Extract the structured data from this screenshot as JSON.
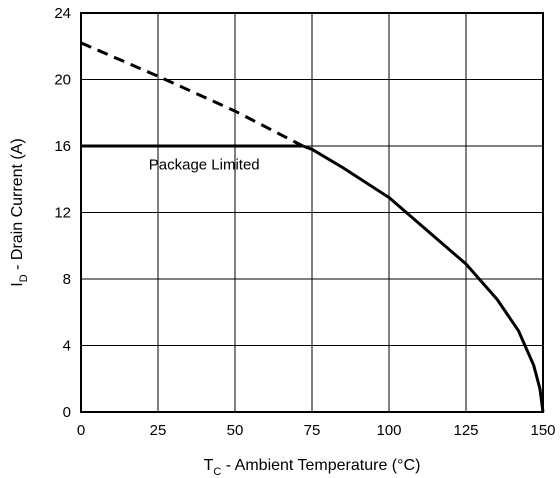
{
  "chart_data": {
    "type": "line",
    "title": "",
    "xlabel": {
      "main": "T",
      "sub": "C",
      "rest": " - Ambient Temperature (°C)"
    },
    "ylabel": {
      "main": "I",
      "sub": "D",
      "rest": " - Drain Current (A)"
    },
    "xlim": [
      0,
      150
    ],
    "ylim": [
      0,
      24
    ],
    "xticks": [
      "0",
      "25",
      "50",
      "75",
      "100",
      "125",
      "150"
    ],
    "yticks": [
      "0",
      "4",
      "8",
      "12",
      "16",
      "20",
      "24"
    ],
    "grid": true,
    "series": [
      {
        "style": "dashed",
        "x": [
          0,
          25,
          50,
          72
        ],
        "y": [
          22.2,
          20.2,
          18.1,
          16.0
        ]
      },
      {
        "style": "solid",
        "x": [
          0,
          72,
          75,
          85,
          100,
          110,
          125,
          135,
          142,
          147,
          149,
          150
        ],
        "y": [
          16.0,
          16.0,
          15.8,
          14.7,
          12.9,
          11.3,
          8.9,
          6.8,
          4.9,
          2.8,
          1.4,
          0
        ]
      }
    ],
    "annotations": [
      {
        "text": "Package Limited",
        "x": 22,
        "y": 14.9
      }
    ]
  }
}
